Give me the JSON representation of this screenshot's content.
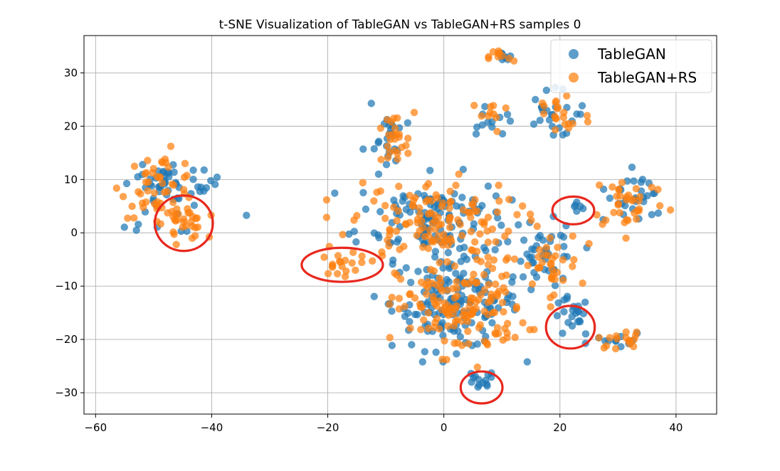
{
  "chart_data": {
    "type": "scatter",
    "title": "t-SNE Visualization of TableGAN vs TableGAN+RS samples 0",
    "xlabel": "",
    "ylabel": "",
    "xlim": [
      -62,
      47
    ],
    "ylim": [
      -34,
      37
    ],
    "xticks": [
      -60,
      -40,
      -20,
      0,
      20,
      40
    ],
    "yticks": [
      -30,
      -20,
      -10,
      0,
      10,
      20,
      30
    ],
    "xtick_labels": [
      "−60",
      "−40",
      "−20",
      "0",
      "20",
      "40"
    ],
    "ytick_labels": [
      "−30",
      "−20",
      "−10",
      "0",
      "10",
      "20",
      "30"
    ],
    "grid": true,
    "legend": {
      "position": "top-right",
      "entries": [
        "TableGAN",
        "TableGAN+RS"
      ]
    },
    "series": [
      {
        "name": "TableGAN",
        "color": "#1f77b4",
        "clusters": [
          {
            "cx": -49,
            "cy": 8,
            "rx": 5.5,
            "ry": 5.5,
            "n": 45
          },
          {
            "cx": -42,
            "cy": 9,
            "rx": 2.5,
            "ry": 4,
            "n": 12
          },
          {
            "cx": -34,
            "cy": 3.3,
            "rx": 0.1,
            "ry": 0.1,
            "n": 1
          },
          {
            "cx": -9,
            "cy": 18,
            "rx": 3.5,
            "ry": 5,
            "n": 25
          },
          {
            "cx": 10,
            "cy": 33,
            "rx": 2,
            "ry": 1.5,
            "n": 8
          },
          {
            "cx": 8,
            "cy": 21,
            "rx": 3,
            "ry": 3,
            "n": 12
          },
          {
            "cx": 19,
            "cy": 22,
            "rx": 5,
            "ry": 5,
            "n": 25
          },
          {
            "cx": 23.5,
            "cy": 5,
            "rx": 1.2,
            "ry": 0.8,
            "n": 6
          },
          {
            "cx": 33,
            "cy": 6,
            "rx": 5,
            "ry": 4.5,
            "n": 30
          },
          {
            "cx": -2,
            "cy": 3,
            "rx": 12,
            "ry": 7,
            "n": 120
          },
          {
            "cx": 2,
            "cy": -13,
            "rx": 10,
            "ry": 8,
            "n": 150
          },
          {
            "cx": 6,
            "cy": -28,
            "rx": 2.5,
            "ry": 2,
            "n": 14
          },
          {
            "cx": 22,
            "cy": -16,
            "rx": 3,
            "ry": 3.5,
            "n": 22
          },
          {
            "cx": 30,
            "cy": -20,
            "rx": 4,
            "ry": 1.5,
            "n": 12
          },
          {
            "cx": 18,
            "cy": -5,
            "rx": 5,
            "ry": 6,
            "n": 40
          }
        ]
      },
      {
        "name": "TableGAN+RS",
        "color": "#ff7f0e",
        "clusters": [
          {
            "cx": -49,
            "cy": 9,
            "rx": 6,
            "ry": 5.5,
            "n": 50
          },
          {
            "cx": -45,
            "cy": 2,
            "rx": 3.5,
            "ry": 3,
            "n": 30
          },
          {
            "cx": -18,
            "cy": -6,
            "rx": 3,
            "ry": 1.8,
            "n": 16
          },
          {
            "cx": -9,
            "cy": 17,
            "rx": 3.5,
            "ry": 5,
            "n": 25
          },
          {
            "cx": 10,
            "cy": 33,
            "rx": 2,
            "ry": 1.5,
            "n": 10
          },
          {
            "cx": 8,
            "cy": 22,
            "rx": 3,
            "ry": 3,
            "n": 10
          },
          {
            "cx": 20,
            "cy": 22,
            "rx": 5,
            "ry": 5,
            "n": 20
          },
          {
            "cx": 32,
            "cy": 6,
            "rx": 6,
            "ry": 5,
            "n": 35
          },
          {
            "cx": -2,
            "cy": 2,
            "rx": 13,
            "ry": 7,
            "n": 130
          },
          {
            "cx": 3,
            "cy": -14,
            "rx": 10,
            "ry": 8,
            "n": 150
          },
          {
            "cx": 31,
            "cy": -20,
            "rx": 4,
            "ry": 1.5,
            "n": 16
          },
          {
            "cx": 18,
            "cy": -6,
            "rx": 5,
            "ry": 6,
            "n": 35
          }
        ]
      }
    ],
    "annotations": {
      "type": "ellipse",
      "color": "#e8281e",
      "items": [
        {
          "cx": -44.8,
          "cy": 1.8,
          "rx": 5,
          "ry": 5.2
        },
        {
          "cx": -17.5,
          "cy": -6,
          "rx": 7,
          "ry": 3.2
        },
        {
          "cx": 22.3,
          "cy": 4.2,
          "rx": 3.6,
          "ry": 2.6
        },
        {
          "cx": 21.8,
          "cy": -17.7,
          "rx": 4.2,
          "ry": 4
        },
        {
          "cx": 6.5,
          "cy": -29,
          "rx": 3.6,
          "ry": 3
        }
      ]
    }
  }
}
